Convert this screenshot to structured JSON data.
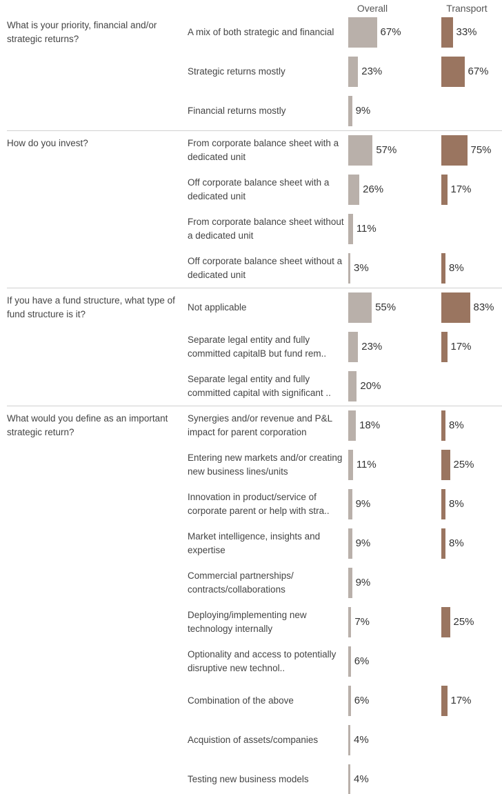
{
  "chart_data": {
    "type": "bar",
    "columns": [
      "Overall",
      "Transport"
    ],
    "colors": {
      "Overall": "#b9b0aa",
      "Transport": "#9a7560"
    },
    "groups": [
      {
        "question": "What is your priority, financial and/or strategic returns?",
        "rows": [
          {
            "answer": "A mix of both strategic and financial",
            "overall": 67,
            "transport": 33
          },
          {
            "answer": "Strategic returns mostly",
            "overall": 23,
            "transport": 67
          },
          {
            "answer": "Financial returns mostly",
            "overall": 9,
            "transport": null
          }
        ]
      },
      {
        "question": "How do you invest?",
        "rows": [
          {
            "answer": "From corporate balance sheet with a dedicated unit",
            "overall": 57,
            "transport": 75
          },
          {
            "answer": "Off corporate balance sheet with a dedicated unit",
            "overall": 26,
            "transport": 17
          },
          {
            "answer": "From corporate balance sheet without a dedicated unit",
            "overall": 11,
            "transport": null
          },
          {
            "answer": "Off corporate balance sheet without a dedicated unit",
            "overall": 3,
            "transport": 8
          }
        ]
      },
      {
        "question": "If you have a fund structure, what type of fund structure is it?",
        "rows": [
          {
            "answer": "Not applicable",
            "overall": 55,
            "transport": 83
          },
          {
            "answer": "Separate legal entity and fully committed capitalB  but fund rem..",
            "overall": 23,
            "transport": 17
          },
          {
            "answer": "Separate legal entity and fully committed capital with significant ..",
            "overall": 20,
            "transport": null
          }
        ]
      },
      {
        "question": "What would you define as an important strategic return?",
        "rows": [
          {
            "answer": "Synergies and/or revenue and P&L impact for parent corporation",
            "overall": 18,
            "transport": 8
          },
          {
            "answer": "Entering new markets and/or creating new business lines/units",
            "overall": 11,
            "transport": 25
          },
          {
            "answer": "Innovation in product/service of corporate parent or help with stra..",
            "overall": 9,
            "transport": 8
          },
          {
            "answer": "Market intelligence, insights and expertise",
            "overall": 9,
            "transport": 8
          },
          {
            "answer": "Commercial partnerships/ contracts/collaborations",
            "overall": 9,
            "transport": null
          },
          {
            "answer": "Deploying/implementing new technology internally",
            "overall": 7,
            "transport": 25
          },
          {
            "answer": "Optionality and access to potentially disruptive new technol..",
            "overall": 6,
            "transport": null
          },
          {
            "answer": "Combination of the above",
            "overall": 6,
            "transport": 17
          },
          {
            "answer": "Acquistion of assets/companies",
            "overall": 4,
            "transport": null
          },
          {
            "answer": "Testing new business models",
            "overall": 4,
            "transport": null
          }
        ]
      }
    ]
  }
}
